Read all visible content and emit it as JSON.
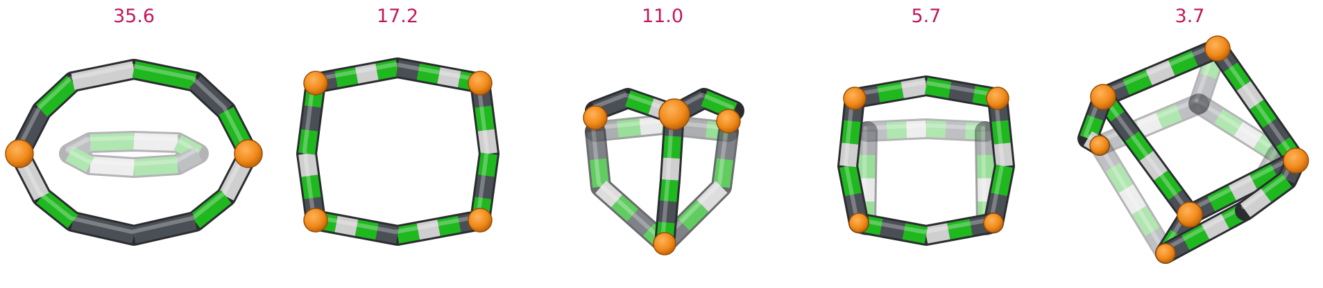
{
  "panels": [
    {
      "label": "35.6",
      "shape": "flat-ring"
    },
    {
      "label": "17.2",
      "shape": "square-front"
    },
    {
      "label": "11.0",
      "shape": "tetrahedral-cage"
    },
    {
      "label": "5.7",
      "shape": "square-prism"
    },
    {
      "label": "3.7",
      "shape": "cube-cage"
    }
  ],
  "colors": {
    "label": "#c2185b",
    "dark": "#4a4e55",
    "green": "#1fb81f",
    "light": "#cfcfcf",
    "orange": "#f08a1a"
  }
}
